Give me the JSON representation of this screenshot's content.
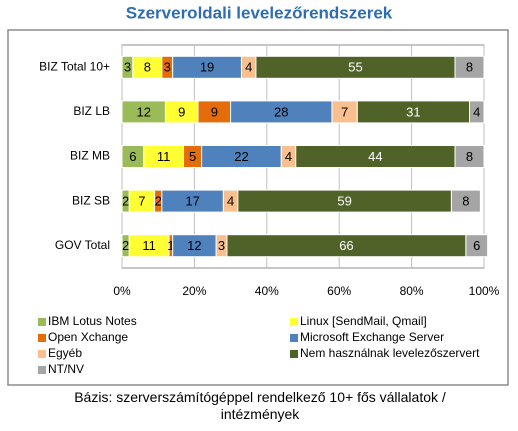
{
  "chart_data": {
    "type": "stacked-bar",
    "orientation": "horizontal",
    "title": "Szerveroldali levelezőrendszerek",
    "categories": [
      "BIZ Total 10+",
      "BIZ LB",
      "BIZ MB",
      "BIZ SB",
      "GOV Total"
    ],
    "series": [
      {
        "name": "IBM Lotus Notes",
        "color": "#9bbb59",
        "values": [
          3,
          12,
          6,
          2,
          2
        ]
      },
      {
        "name": "Linux [SendMail, Qmail]",
        "color": "#ffff33",
        "values": [
          8,
          9,
          11,
          7,
          11
        ]
      },
      {
        "name": "Open Xchange",
        "color": "#e46c0a",
        "values": [
          3,
          9,
          5,
          2,
          1
        ]
      },
      {
        "name": "Microsoft Exchange Server",
        "color": "#4f81bd",
        "values": [
          19,
          28,
          22,
          17,
          12
        ]
      },
      {
        "name": "Egyéb",
        "color": "#fabf8f",
        "values": [
          4,
          7,
          4,
          4,
          3
        ]
      },
      {
        "name": "Nem használnak levelezőszervert",
        "color": "#4f6228",
        "values": [
          55,
          31,
          44,
          59,
          66
        ]
      },
      {
        "name": "NT/NV",
        "color": "#a5a5a5",
        "values": [
          8,
          4,
          8,
          8,
          6
        ]
      }
    ],
    "xlim": [
      0,
      100
    ],
    "xticks": [
      {
        "value": 0,
        "label": "0%"
      },
      {
        "value": 20,
        "label": "20%"
      },
      {
        "value": 40,
        "label": "40%"
      },
      {
        "value": 60,
        "label": "60%"
      },
      {
        "value": 80,
        "label": "80%"
      },
      {
        "value": 100,
        "label": "100%"
      }
    ],
    "grid": true,
    "footnote": "Bázis: szerverszámítógéppel rendelkező 10+ fős vállalatok / intézmények"
  }
}
